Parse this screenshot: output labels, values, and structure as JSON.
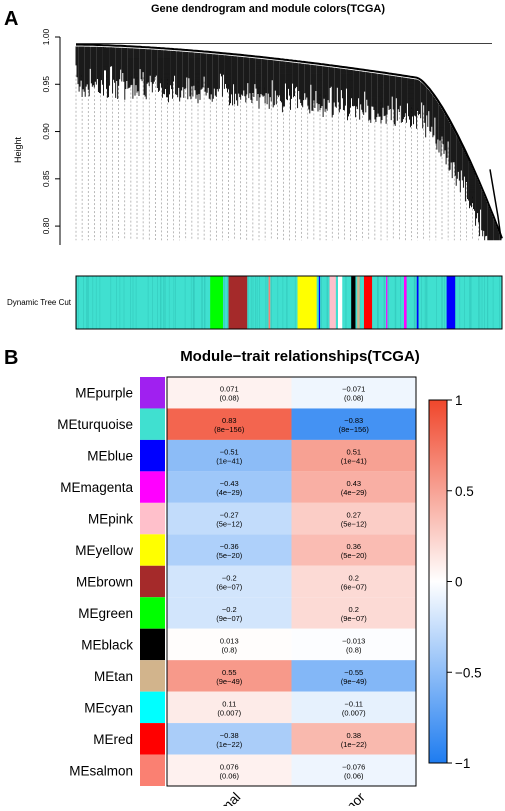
{
  "panel_a": {
    "label": "A",
    "title": "Gene dendrogram and module colors(TCGA)",
    "ylabel": "Height",
    "ylim": [
      0.78,
      1.0
    ],
    "yticks": [
      "0.80",
      "0.85",
      "0.90",
      "0.95",
      "1.00"
    ],
    "ytick_values": [
      0.8,
      0.85,
      0.9,
      0.95,
      1.0
    ],
    "color_bar_label": "Dynamic Tree Cut",
    "base_color": "#40e0d0",
    "color_bands": [
      {
        "start": 0.315,
        "end": 0.345,
        "color": "#00ff00"
      },
      {
        "start": 0.358,
        "end": 0.402,
        "color": "#a52a2a"
      },
      {
        "start": 0.452,
        "end": 0.456,
        "color": "#fa8072"
      },
      {
        "start": 0.52,
        "end": 0.565,
        "color": "#ffff00"
      },
      {
        "start": 0.57,
        "end": 0.573,
        "color": "#0000ff"
      },
      {
        "start": 0.595,
        "end": 0.61,
        "color": "#ffc0cb"
      },
      {
        "start": 0.615,
        "end": 0.625,
        "color": "#ffffff"
      },
      {
        "start": 0.646,
        "end": 0.656,
        "color": "#000000"
      },
      {
        "start": 0.66,
        "end": 0.666,
        "color": "#d2b48c"
      },
      {
        "start": 0.676,
        "end": 0.695,
        "color": "#ff0000"
      },
      {
        "start": 0.728,
        "end": 0.731,
        "color": "#ff00ff"
      },
      {
        "start": 0.77,
        "end": 0.776,
        "color": "#ff00ff"
      },
      {
        "start": 0.8,
        "end": 0.804,
        "color": "#0000ff"
      },
      {
        "start": 0.87,
        "end": 0.89,
        "color": "#0000ff"
      }
    ]
  },
  "panel_b": {
    "label": "B",
    "title": "Module−trait relationships(TCGA)",
    "columns": [
      "Normal",
      "Tumor"
    ],
    "legend_ticks": [
      "1",
      "0.5",
      "0",
      "−0.5",
      "−1"
    ],
    "legend_tick_values": [
      1,
      0.5,
      0,
      -0.5,
      -1
    ],
    "colors": {
      "negative": "#1e7cf0",
      "neutral": "#ffffff",
      "positive": "#f0462b"
    }
  },
  "chart_data": [
    {
      "type": "dendrogram",
      "title": "Gene dendrogram and module colors(TCGA)",
      "ylabel": "Height",
      "ylim": [
        0.78,
        1.0
      ],
      "color_bar_label": "Dynamic Tree Cut"
    },
    {
      "type": "heatmap",
      "title": "Module−trait relationships(TCGA)",
      "x": [
        "Normal",
        "Tumor"
      ],
      "rows": [
        {
          "module": "MEpurple",
          "color": "#a020f0",
          "values": [
            0.071,
            -0.071
          ],
          "labels": [
            "0.071",
            "−0.071"
          ],
          "pvalues": [
            "(0.08)",
            "(0.08)"
          ]
        },
        {
          "module": "MEturquoise",
          "color": "#40e0d0",
          "values": [
            0.83,
            -0.83
          ],
          "labels": [
            "0.83",
            "−0.83"
          ],
          "pvalues": [
            "(8e−156)",
            "(8e−156)"
          ]
        },
        {
          "module": "MEblue",
          "color": "#0000ff",
          "values": [
            -0.51,
            0.51
          ],
          "labels": [
            "−0.51",
            "0.51"
          ],
          "pvalues": [
            "(1e−41)",
            "(1e−41)"
          ]
        },
        {
          "module": "MEmagenta",
          "color": "#ff00ff",
          "values": [
            -0.43,
            0.43
          ],
          "labels": [
            "−0.43",
            "0.43"
          ],
          "pvalues": [
            "(4e−29)",
            "(4e−29)"
          ]
        },
        {
          "module": "MEpink",
          "color": "#ffc0cb",
          "values": [
            -0.27,
            0.27
          ],
          "labels": [
            "−0.27",
            "0.27"
          ],
          "pvalues": [
            "(5e−12)",
            "(5e−12)"
          ]
        },
        {
          "module": "MEyellow",
          "color": "#ffff00",
          "values": [
            -0.36,
            0.36
          ],
          "labels": [
            "−0.36",
            "0.36"
          ],
          "pvalues": [
            "(5e−20)",
            "(5e−20)"
          ]
        },
        {
          "module": "MEbrown",
          "color": "#a52a2a",
          "values": [
            -0.2,
            0.2
          ],
          "labels": [
            "−0.2",
            "0.2"
          ],
          "pvalues": [
            "(6e−07)",
            "(6e−07)"
          ]
        },
        {
          "module": "MEgreen",
          "color": "#00ff00",
          "values": [
            -0.2,
            0.2
          ],
          "labels": [
            "−0.2",
            "0.2"
          ],
          "pvalues": [
            "(9e−07)",
            "(9e−07)"
          ]
        },
        {
          "module": "MEblack",
          "color": "#000000",
          "values": [
            0.013,
            -0.013
          ],
          "labels": [
            "0.013",
            "−0.013"
          ],
          "pvalues": [
            "(0.8)",
            "(0.8)"
          ]
        },
        {
          "module": "MEtan",
          "color": "#d2b48c",
          "values": [
            0.55,
            -0.55
          ],
          "labels": [
            "0.55",
            "−0.55"
          ],
          "pvalues": [
            "(9e−49)",
            "(9e−49)"
          ]
        },
        {
          "module": "MEcyan",
          "color": "#00ffff",
          "values": [
            0.11,
            -0.11
          ],
          "labels": [
            "0.11",
            "−0.11"
          ],
          "pvalues": [
            "(0.007)",
            "(0.007)"
          ]
        },
        {
          "module": "MEred",
          "color": "#ff0000",
          "values": [
            -0.38,
            0.38
          ],
          "labels": [
            "−0.38",
            "0.38"
          ],
          "pvalues": [
            "(1e−22)",
            "(1e−22)"
          ]
        },
        {
          "module": "MEsalmon",
          "color": "#fa8072",
          "values": [
            0.076,
            -0.076
          ],
          "labels": [
            "0.076",
            "−0.076"
          ],
          "pvalues": [
            "(0.06)",
            "(0.06)"
          ]
        }
      ],
      "zlim": [
        -1,
        1
      ],
      "legend": "right"
    }
  ]
}
